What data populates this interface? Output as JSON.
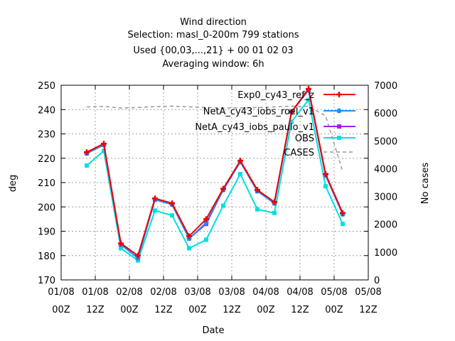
{
  "chart_data": {
    "type": "line",
    "title_lines": [
      "Wind direction",
      "Selection: masl_0-200m    799 stations",
      "Used {00,03,...,21} + 00 01 02 03",
      "Averaging window:  6h"
    ],
    "xlabel": "Date",
    "ylabel": "deg",
    "y2label": "No cases",
    "ylim": [
      170,
      250
    ],
    "y2lim": [
      0,
      7000
    ],
    "yticks": [
      "170",
      "180",
      "190",
      "200",
      "210",
      "220",
      "230",
      "240",
      "250"
    ],
    "y2ticks": [
      "0",
      "1000",
      "2000",
      "3000",
      "4000",
      "5000",
      "6000",
      "7000"
    ],
    "xticks": [
      {
        "date": "01/08",
        "hour": "00Z"
      },
      {
        "date": "01/08",
        "hour": "12Z"
      },
      {
        "date": "02/08",
        "hour": "00Z"
      },
      {
        "date": "02/08",
        "hour": "12Z"
      },
      {
        "date": "03/08",
        "hour": "00Z"
      },
      {
        "date": "03/08",
        "hour": "12Z"
      },
      {
        "date": "04/08",
        "hour": "00Z"
      },
      {
        "date": "04/08",
        "hour": "12Z"
      },
      {
        "date": "05/08",
        "hour": "00Z"
      },
      {
        "date": "05/08",
        "hour": "12Z"
      }
    ],
    "x_hours": [
      9,
      15,
      21,
      27,
      33,
      39,
      45,
      51,
      57,
      63,
      69,
      75,
      81,
      87,
      93,
      99
    ],
    "grid": true,
    "legend_position": "top-right",
    "series": [
      {
        "name": "Exp0_cy43_ref_z",
        "color": "#ee0000",
        "marker": "plus",
        "values": [
          222.5,
          226,
          185,
          180,
          203.5,
          201.5,
          188,
          195,
          207.5,
          219,
          207,
          202,
          239,
          248.5,
          213.5,
          197.5
        ]
      },
      {
        "name": "NetA_cy43_iobs_roel_v1",
        "color": "#1e90ff",
        "marker": "star",
        "values": [
          222,
          225.5,
          184.5,
          179,
          203,
          201,
          187,
          193.5,
          207,
          218.5,
          206.5,
          201.5,
          239,
          248,
          213,
          197
        ]
      },
      {
        "name": "NetA_cy43_iobs_paulo_v1",
        "color": "#a020f0",
        "marker": "box",
        "values": [
          222,
          225.5,
          184.5,
          179,
          203,
          201,
          187,
          193,
          207,
          218.5,
          206.5,
          201.5,
          239,
          248,
          213,
          197
        ]
      },
      {
        "name": "OBS",
        "color": "#00e0e0",
        "marker": "box",
        "values": [
          217,
          223,
          183,
          178,
          198.5,
          196.5,
          183,
          186.5,
          200.5,
          213.5,
          199,
          197.5,
          235,
          244,
          208.5,
          193
        ]
      },
      {
        "name": "CASES",
        "color": "#999999",
        "marker": "none",
        "axis": "y2",
        "values": [
          6220,
          6240,
          6180,
          6200,
          6230,
          6250,
          6220,
          6200,
          6180,
          6190,
          6200,
          6220,
          6250,
          6240,
          5900,
          3900
        ]
      }
    ]
  }
}
